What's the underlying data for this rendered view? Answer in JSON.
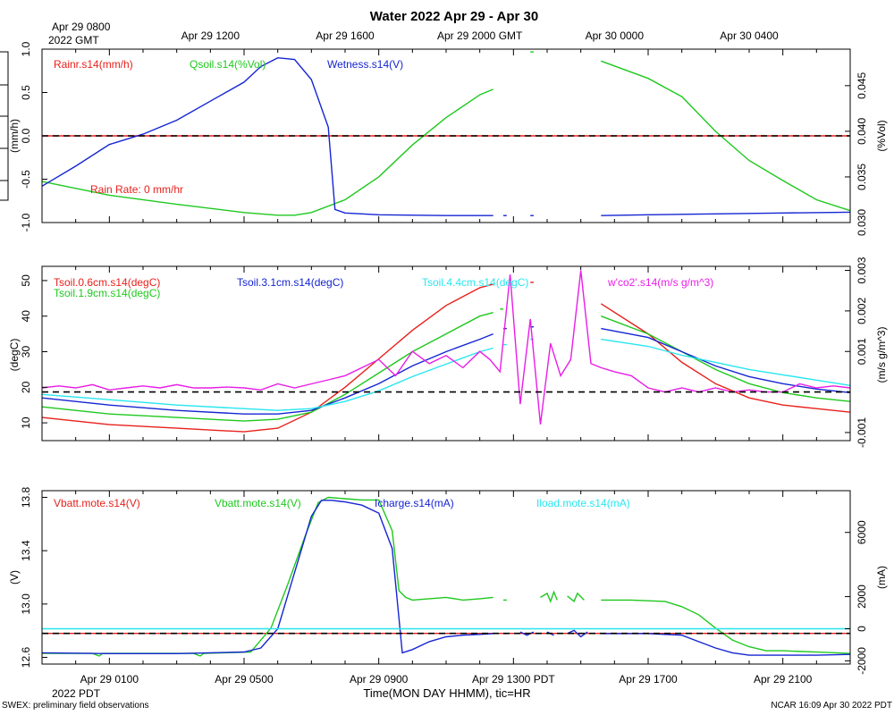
{
  "page": {
    "title": "Water 2022 Apr 29 - Apr 30",
    "footer_left": "SWEX: preliminary field observations",
    "footer_right": "NCAR 16:09 Apr 30 2022 PDT",
    "time_axis_label": "Time(MON DAY HHMM), tic=HR",
    "gmt_ticks": [
      "Apr 29 1200",
      "Apr 29 1600",
      "Apr 29 2000 GMT",
      "Apr 30 0000",
      "Apr 30 0400"
    ],
    "gmt_start_line1": "Apr 29 0800",
    "gmt_start_line2": "2022 GMT",
    "pdt_ticks": [
      "Apr 29 0100",
      "Apr 29 0500",
      "Apr 29 0900",
      "Apr 29 1300 PDT",
      "Apr 29 1700",
      "Apr 29 2100"
    ],
    "pdt_start_line2": "2022 PDT",
    "colors": {
      "red": "#e8201b",
      "green": "#1ec81e",
      "blue": "#1525d2",
      "cyan": "#28e6ef",
      "magenta": "#e81ee6",
      "black": "#000000"
    }
  },
  "chart_data": [
    {
      "type": "line",
      "title": "Water 2022 Apr 29 - Apr 30",
      "x_unit": "hours since Apr 29 0000 PDT",
      "xlim": [
        0,
        24
      ],
      "ylabel_left": "(mm/h)",
      "ylabel_right": "(%Vol)",
      "ylim_left": [
        -1.0,
        1.0
      ],
      "ylim_right": [
        0.03,
        0.049
      ],
      "yticks_left": [
        "-1.0",
        "-0.5",
        "0.0",
        "0.5",
        "1.0"
      ],
      "yticks_right": [
        "0.030",
        "0.035",
        "0.040",
        "0.045"
      ],
      "annotation": "Rain Rate: 0 mm/hr",
      "series": [
        {
          "name": "Rainr.s14(mm/h)",
          "axis": "left",
          "color": "red",
          "x": [
            0,
            24
          ],
          "y": [
            0,
            0
          ]
        },
        {
          "name": "Qsoil.s14(%Vol)",
          "axis": "right",
          "color": "green",
          "x": [
            0,
            2,
            4,
            6,
            7,
            7.5,
            8,
            9,
            10,
            11,
            12,
            13,
            13.4
          ],
          "y": [
            0.0345,
            0.033,
            0.032,
            0.0311,
            0.0308,
            0.0308,
            0.0311,
            0.0325,
            0.035,
            0.0385,
            0.0415,
            0.044,
            0.0446
          ],
          "segments": [
            {
              "x": [
                14.5,
                14.6
              ],
              "y": [
                0.0487,
                0.0487
              ]
            },
            {
              "x": [
                16.6,
                18,
                19,
                20,
                21,
                22,
                23,
                24
              ],
              "y": [
                0.0477,
                0.0458,
                0.0438,
                0.04,
                0.0368,
                0.0346,
                0.0325,
                0.0313
              ]
            }
          ]
        },
        {
          "name": "Wetness.s14(V)",
          "axis": "left",
          "color": "blue",
          "x": [
            0,
            1,
            2,
            3,
            4,
            5,
            6,
            6.5,
            7,
            7.5,
            8,
            8.5,
            8.7,
            9,
            10,
            12,
            13.4
          ],
          "y": [
            -0.58,
            -0.35,
            -0.1,
            0.02,
            0.18,
            0.4,
            0.62,
            0.8,
            0.9,
            0.88,
            0.65,
            0.1,
            -0.85,
            -0.89,
            -0.91,
            -0.92,
            -0.92
          ],
          "segments": [
            {
              "x": [
                13.7,
                13.8
              ],
              "y": [
                -0.92,
                -0.92
              ]
            },
            {
              "x": [
                14.5,
                14.6
              ],
              "y": [
                -0.92,
                -0.92
              ]
            },
            {
              "x": [
                16.6,
                18,
                20,
                22,
                24
              ],
              "y": [
                -0.92,
                -0.91,
                -0.9,
                -0.89,
                -0.88
              ]
            }
          ]
        },
        {
          "name": "zero line",
          "axis": "left",
          "color": "black",
          "dashed": true,
          "x": [
            0,
            24
          ],
          "y": [
            0,
            0
          ]
        }
      ]
    },
    {
      "type": "line",
      "x_unit": "hours since Apr 29 0000 PDT",
      "xlim": [
        0,
        24
      ],
      "ylabel_left": "(degC)",
      "ylabel_right": "(m/s g/m^3)",
      "ylim_left": [
        5,
        54
      ],
      "ylim_right": [
        -0.0012,
        0.0031
      ],
      "yticks_left": [
        "10",
        "20",
        "30",
        "40",
        "50"
      ],
      "yticks_right": [
        "-0.001",
        "0.001",
        "0.002",
        "0.003"
      ],
      "series": [
        {
          "name": "Tsoil.0.6cm.s14(degC)",
          "axis": "left",
          "color": "red",
          "x": [
            0,
            2,
            4,
            6,
            7,
            8,
            9,
            10,
            11,
            12,
            13,
            13.4
          ],
          "y": [
            11.5,
            9.5,
            8.5,
            7.5,
            8.5,
            13,
            20,
            28,
            36,
            43,
            48,
            49
          ],
          "segments": [
            {
              "x": [
                14.5,
                14.6
              ],
              "y": [
                49.5,
                49.5
              ]
            },
            {
              "x": [
                16.6,
                18,
                19,
                20,
                21,
                22,
                23,
                24
              ],
              "y": [
                43.5,
                35,
                27,
                21,
                17,
                15,
                14,
                13
              ]
            }
          ]
        },
        {
          "name": "Tsoil.1.9cm.s14(degC)",
          "axis": "left",
          "color": "green",
          "x": [
            0,
            2,
            4,
            6,
            7,
            8,
            9,
            10,
            11,
            12,
            13,
            13.4
          ],
          "y": [
            14.5,
            12.5,
            11.5,
            10.5,
            11,
            13,
            18,
            24,
            30,
            35,
            40,
            41
          ],
          "segments": [
            {
              "x": [
                13.6,
                13.7
              ],
              "y": [
                42,
                42
              ]
            },
            {
              "x": [
                16.6,
                18,
                19,
                20,
                21,
                22,
                23,
                24
              ],
              "y": [
                40,
                35,
                30,
                25,
                21,
                18.5,
                17,
                16
              ]
            }
          ]
        },
        {
          "name": "Tsoil.3.1cm.s14(degC)",
          "axis": "left",
          "color": "blue",
          "x": [
            0,
            2,
            4,
            6,
            7,
            8,
            9,
            10,
            11,
            12,
            13,
            13.4
          ],
          "y": [
            17,
            15,
            13.5,
            12.5,
            12.5,
            13.5,
            17,
            21,
            26,
            30,
            33.5,
            35
          ],
          "segments": [
            {
              "x": [
                13.7,
                13.8
              ],
              "y": [
                36.5,
                36.5
              ]
            },
            {
              "x": [
                14.5,
                14.6
              ],
              "y": [
                37,
                37
              ]
            },
            {
              "x": [
                16.6,
                18,
                19,
                20,
                21,
                22,
                23,
                24
              ],
              "y": [
                36.5,
                34,
                30,
                26,
                23,
                21,
                19.5,
                18.5
              ]
            }
          ]
        },
        {
          "name": "Tsoil.4.4cm.s14(degC)",
          "axis": "left",
          "color": "cyan",
          "x": [
            0,
            2,
            4,
            6,
            7,
            8,
            9,
            10,
            11,
            12,
            13,
            13.4
          ],
          "y": [
            18,
            16.5,
            15,
            14,
            13.5,
            14,
            16,
            19,
            23,
            26.5,
            30,
            31
          ],
          "segments": [
            {
              "x": [
                13.7,
                13.8
              ],
              "y": [
                32,
                32
              ]
            },
            {
              "x": [
                14.5,
                14.6
              ],
              "y": [
                33.5,
                33.5
              ]
            },
            {
              "x": [
                16.6,
                18,
                19,
                20,
                21,
                22,
                23,
                24
              ],
              "y": [
                33.5,
                31.5,
                29,
                27,
                25,
                23.5,
                22,
                20.5
              ]
            }
          ]
        },
        {
          "name": "w'co2'.s14(m/s g/m^3)",
          "axis": "right",
          "color": "magenta",
          "x": [
            0,
            0.5,
            1,
            1.5,
            2,
            2.5,
            3,
            3.5,
            4,
            4.5,
            5,
            5.5,
            6,
            6.5,
            7,
            7.5,
            8,
            8.5,
            9,
            9.5,
            10,
            10.5,
            11,
            11.5,
            12,
            12.5,
            13,
            13.3,
            13.6,
            13.9,
            14.2,
            14.5,
            14.8,
            15.1,
            15.4,
            15.7,
            16.0,
            16.3,
            16.6,
            17,
            17.5,
            18,
            18.5,
            19,
            19.5,
            20,
            20.5,
            21,
            21.5,
            22,
            22.5,
            23,
            23.5,
            24
          ],
          "y": [
            0.0001,
            0.00015,
            0.0001,
            0.00018,
            5e-05,
            0.0001,
            0.00015,
            0.0001,
            0.00018,
            0.0001,
            0.0001,
            0.00012,
            0.0001,
            5e-05,
            0.0002,
            0.0001,
            0.0002,
            0.0003,
            0.0004,
            0.0006,
            0.0008,
            0.0004,
            0.001,
            0.0007,
            0.0009,
            0.0006,
            0.001,
            0.0008,
            0.0005,
            0.0029,
            -0.0003,
            0.0018,
            -0.0008,
            0.0012,
            0.0004,
            0.0008,
            0.003,
            0.0007,
            0.0006,
            0.0005,
            0.0004,
            0.0001,
            0.0,
            0.0001,
            0.0,
            0.0001,
            0.0,
            5e-05,
            0.0,
            0.0,
            0.0002,
            0.0001,
            0.00015,
            0.0001
          ]
        },
        {
          "name": "zero line",
          "axis": "right",
          "color": "black",
          "dashed": true,
          "x": [
            0,
            24
          ],
          "y": [
            0,
            0
          ]
        }
      ]
    },
    {
      "type": "line",
      "x_unit": "hours since Apr 29 0000 PDT",
      "xlim": [
        0,
        24
      ],
      "ylabel_left": "(V)",
      "ylabel_right": "(mA)",
      "ylim_left": [
        12.55,
        13.85
      ],
      "ylim_right": [
        -2200,
        8600
      ],
      "yticks_left": [
        "12.6",
        "13.0",
        "13.4",
        "13.8"
      ],
      "yticks_right": [
        "-2000",
        "0",
        "2000",
        "6000"
      ],
      "series": [
        {
          "name": "Vbatt.mote.s14(V)",
          "axis": "left",
          "color": "red",
          "x": [
            0,
            24
          ],
          "y": [
            12.78,
            12.78
          ]
        },
        {
          "name": "Vbatt.mote.s14(V)",
          "axis": "left",
          "color": "green",
          "x": [
            0,
            1.5,
            1.7,
            1.8,
            4.5,
            4.7,
            4.8,
            6.2,
            6.8,
            7.3,
            7.8,
            8.2,
            8.5,
            9,
            9.5,
            10,
            10.4,
            10.6,
            10.8,
            11,
            11.5,
            12,
            12.5,
            13,
            13.4
          ],
          "y": [
            12.63,
            12.63,
            12.61,
            12.63,
            12.63,
            12.61,
            12.63,
            12.64,
            12.82,
            13.15,
            13.5,
            13.76,
            13.8,
            13.79,
            13.78,
            13.78,
            13.55,
            13.1,
            13.05,
            13.03,
            13.04,
            13.05,
            13.03,
            13.04,
            13.05
          ],
          "segments": [
            {
              "x": [
                13.7,
                13.8
              ],
              "y": [
                13.03,
                13.03
              ]
            },
            {
              "x": [
                14.8,
                15.0,
                15.1,
                15.2,
                15.3
              ],
              "y": [
                13.05,
                13.08,
                13.02,
                13.09,
                13.03
              ]
            },
            {
              "x": [
                15.6,
                15.8,
                15.9,
                16.1
              ],
              "y": [
                13.06,
                13.02,
                13.08,
                13.03
              ]
            },
            {
              "x": [
                16.6,
                17.5,
                18.5,
                19,
                19.5,
                20,
                20.5,
                21,
                21.5,
                22,
                23,
                24
              ],
              "y": [
                13.03,
                13.03,
                13.02,
                12.98,
                12.92,
                12.82,
                12.73,
                12.68,
                12.65,
                12.65,
                12.64,
                12.63
              ]
            }
          ]
        },
        {
          "name": "Icharge.s14(mA)",
          "axis": "right",
          "color": "blue",
          "x": [
            0,
            2,
            4,
            6,
            6.5,
            7,
            7.5,
            8,
            8.3,
            8.6,
            9,
            9.5,
            10,
            10.4,
            10.7,
            11,
            11.5,
            12,
            12.5,
            13,
            13.4
          ],
          "y": [
            -1500,
            -1550,
            -1550,
            -1450,
            -1200,
            0,
            3500,
            7000,
            8000,
            8000,
            7900,
            7700,
            7200,
            5000,
            -1500,
            -1300,
            -800,
            -500,
            -400,
            -350,
            -300
          ],
          "segments": [
            {
              "x": [
                13.7,
                13.8
              ],
              "y": [
                -300,
                -300
              ]
            },
            {
              "x": [
                14.2,
                14.4,
                14.6
              ],
              "y": [
                -200,
                -400,
                -200
              ]
            },
            {
              "x": [
                15.0,
                15.2
              ],
              "y": [
                -200,
                -400
              ]
            },
            {
              "x": [
                15.6,
                15.8,
                16.0,
                16.2
              ],
              "y": [
                -300,
                -100,
                -500,
                -200
              ]
            },
            {
              "x": [
                16.6,
                18,
                19,
                19.5,
                20,
                20.5,
                21,
                22,
                23,
                24
              ],
              "y": [
                -300,
                -300,
                -400,
                -800,
                -1200,
                -1500,
                -1650,
                -1650,
                -1650,
                -1600
              ]
            }
          ]
        },
        {
          "name": "Iload.mote.s14(mA)",
          "axis": "right",
          "color": "cyan",
          "x": [
            0,
            24
          ],
          "y": [
            0,
            0
          ]
        },
        {
          "name": "zero line",
          "axis": "left",
          "color": "black",
          "dashed": true,
          "x": [
            0,
            24
          ],
          "y": [
            12.78,
            12.78
          ]
        }
      ]
    }
  ]
}
